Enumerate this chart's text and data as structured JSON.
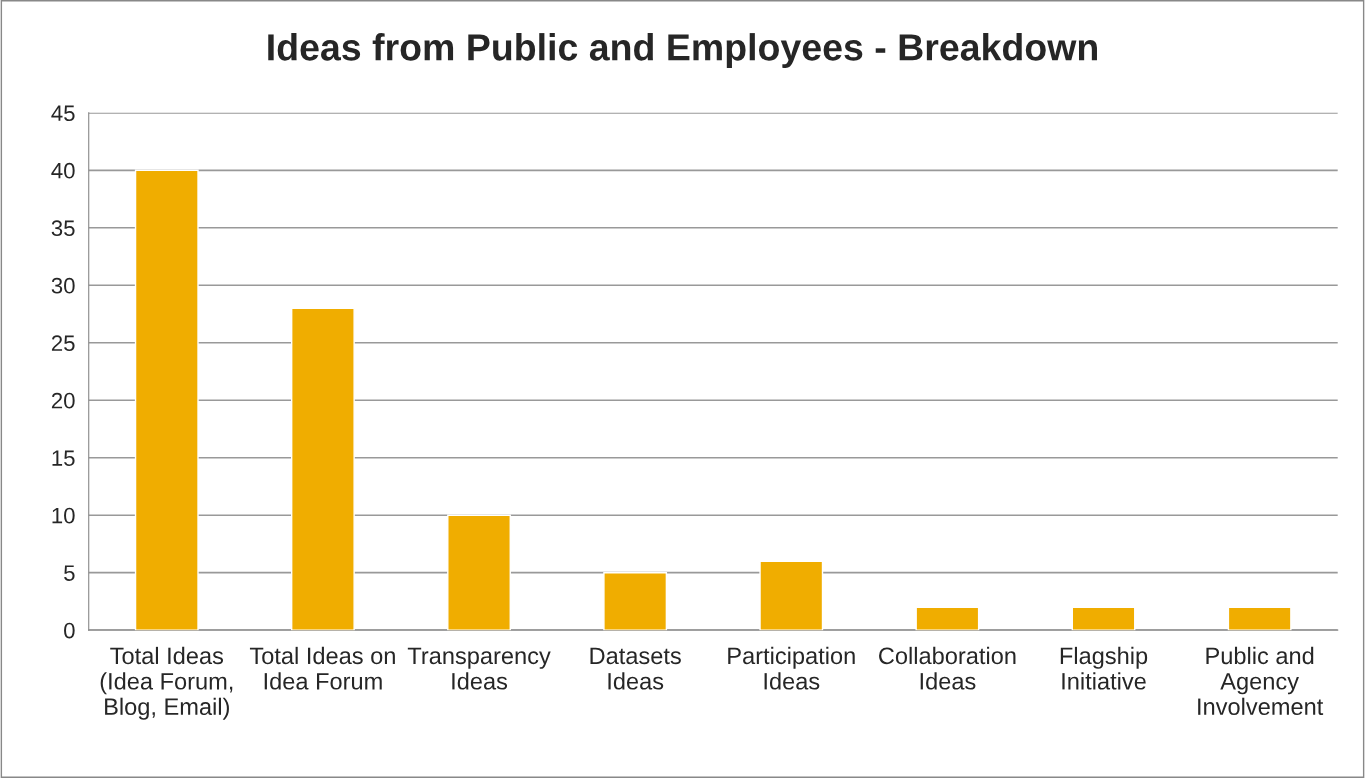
{
  "chart_data": {
    "type": "bar",
    "title": "Ideas from Public and Employees - Breakdown",
    "categories": [
      "Total Ideas\n(Idea Forum,\nBlog, Email)",
      "Total Ideas on\nIdea Forum",
      "Transparency\nIdeas",
      "Datasets\nIdeas",
      "Participation\nIdeas",
      "Collaboration\nIdeas",
      "Flagship\nInitiative",
      "Public and\nAgency\nInvolvement"
    ],
    "values": [
      40,
      28,
      10,
      5,
      6,
      2,
      2,
      2
    ],
    "color": "#f0ad00",
    "ylim": [
      0,
      45
    ],
    "yticks": [
      0,
      5,
      10,
      15,
      20,
      25,
      30,
      35,
      40,
      45
    ],
    "grid": "y",
    "legend": false
  }
}
